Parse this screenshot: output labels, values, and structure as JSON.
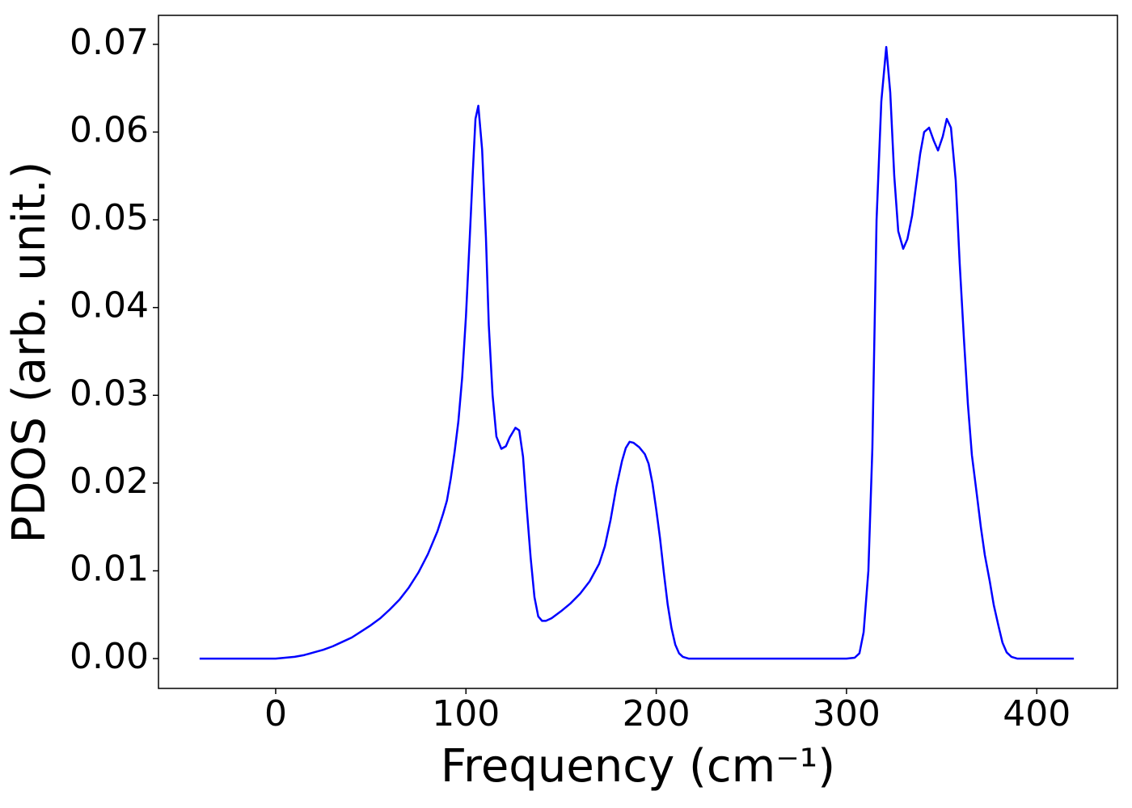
{
  "chart_data": {
    "type": "line",
    "xlabel": "Frequency (cm⁻¹)",
    "ylabel": "PDOS (arb. unit.)",
    "color": "#0000ff",
    "x": [
      -40,
      0,
      5,
      10,
      15,
      20,
      25,
      30,
      35,
      40,
      45,
      50,
      55,
      60,
      65,
      70,
      75,
      80,
      85,
      88,
      90,
      92,
      94,
      96,
      98,
      100,
      102,
      103.5,
      105,
      106.5,
      108.5,
      110.5,
      112,
      114,
      116,
      118.6,
      121,
      123,
      126,
      128,
      130,
      132,
      134,
      136,
      138,
      140,
      142,
      145,
      150,
      155,
      160,
      165,
      170,
      173,
      176,
      179,
      182,
      184,
      186,
      188,
      191,
      194,
      196,
      198,
      200,
      202,
      204,
      206,
      208,
      210,
      212,
      214,
      217,
      220,
      300,
      304.3,
      306.8,
      309,
      311.5,
      313.6,
      315.8,
      318.3,
      320.9,
      323,
      325.1,
      327.2,
      329.8,
      332,
      334.5,
      336.6,
      338.7,
      340.8,
      343.4,
      345.9,
      348.1,
      350.6,
      352.7,
      354.9,
      357.4,
      359.5,
      361.7,
      363.8,
      365.9,
      368.5,
      370.6,
      372.7,
      375.3,
      377.4,
      379.9,
      382,
      384.2,
      386.7,
      389.7,
      419.5
    ],
    "values": [
      0,
      0,
      0.0001,
      0.0002,
      0.0004,
      0.0007,
      0.001,
      0.0014,
      0.0019,
      0.0024,
      0.0031,
      0.0038,
      0.0046,
      0.0056,
      0.0067,
      0.0081,
      0.0098,
      0.0119,
      0.0145,
      0.0165,
      0.018,
      0.0205,
      0.0235,
      0.027,
      0.032,
      0.039,
      0.048,
      0.055,
      0.0615,
      0.063,
      0.058,
      0.048,
      0.038,
      0.03,
      0.0253,
      0.0239,
      0.0242,
      0.0252,
      0.0263,
      0.026,
      0.023,
      0.017,
      0.0115,
      0.007,
      0.0048,
      0.0043,
      0.0043,
      0.0046,
      0.0054,
      0.0063,
      0.0074,
      0.0088,
      0.0108,
      0.0128,
      0.0158,
      0.0195,
      0.0225,
      0.024,
      0.0247,
      0.0246,
      0.0241,
      0.0233,
      0.0222,
      0.02,
      0.017,
      0.0137,
      0.0098,
      0.0062,
      0.0035,
      0.0016,
      0.0006,
      0.0002,
      0,
      0,
      0,
      0.0001,
      0.0006,
      0.003,
      0.01,
      0.024,
      0.05,
      0.0635,
      0.0697,
      0.0645,
      0.055,
      0.0487,
      0.0467,
      0.0478,
      0.0505,
      0.054,
      0.0575,
      0.06,
      0.0605,
      0.059,
      0.0579,
      0.0595,
      0.0615,
      0.0605,
      0.0545,
      0.045,
      0.0365,
      0.029,
      0.0232,
      0.0187,
      0.015,
      0.0118,
      0.0088,
      0.0061,
      0.0037,
      0.0018,
      0.0007,
      0.0002,
      0,
      0
    ],
    "xlim": [
      -61.6,
      442.4
    ],
    "xticks": [
      0,
      100,
      200,
      300,
      400
    ],
    "ylim": [
      -0.0034,
      0.0733
    ],
    "yticks": [
      {
        "value": 0,
        "label": "0.00"
      },
      0.01,
      0.02,
      0.03,
      0.04,
      0.05,
      0.06,
      0.07
    ],
    "grid": false
  }
}
